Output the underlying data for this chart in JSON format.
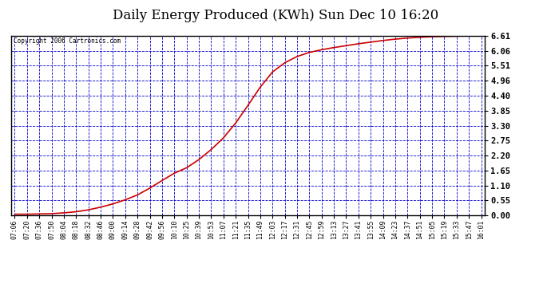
{
  "title": "Daily Energy Produced (KWh) Sun Dec 10 16:20",
  "copyright_text": "Copyright 2006 Cartronics.com",
  "y_ticks": [
    0.0,
    0.55,
    1.1,
    1.65,
    2.2,
    2.75,
    3.3,
    3.85,
    4.4,
    4.96,
    5.51,
    6.06,
    6.61
  ],
  "y_max": 6.61,
  "y_min": 0.0,
  "line_color": "#cc0000",
  "background_color": "#ffffff",
  "plot_bg_color": "#ffffff",
  "grid_color": "#0000cc",
  "title_fontsize": 12,
  "x_labels": [
    "07:06",
    "07:20",
    "07:36",
    "07:50",
    "08:04",
    "08:18",
    "08:32",
    "08:46",
    "09:00",
    "09:14",
    "09:28",
    "09:42",
    "09:56",
    "10:10",
    "10:25",
    "10:39",
    "10:53",
    "11:07",
    "11:21",
    "11:35",
    "11:49",
    "12:03",
    "12:17",
    "12:31",
    "12:45",
    "12:59",
    "13:13",
    "13:27",
    "13:41",
    "13:55",
    "14:09",
    "14:23",
    "14:37",
    "14:51",
    "15:05",
    "15:19",
    "15:33",
    "15:47",
    "16:01"
  ],
  "y_values": [
    0.04,
    0.04,
    0.05,
    0.06,
    0.09,
    0.13,
    0.2,
    0.3,
    0.42,
    0.57,
    0.75,
    1.0,
    1.28,
    1.55,
    1.75,
    2.05,
    2.42,
    2.85,
    3.4,
    4.05,
    4.72,
    5.28,
    5.62,
    5.85,
    6.0,
    6.1,
    6.18,
    6.25,
    6.32,
    6.38,
    6.44,
    6.49,
    6.53,
    6.56,
    6.58,
    6.59,
    6.6,
    6.61,
    6.61
  ]
}
